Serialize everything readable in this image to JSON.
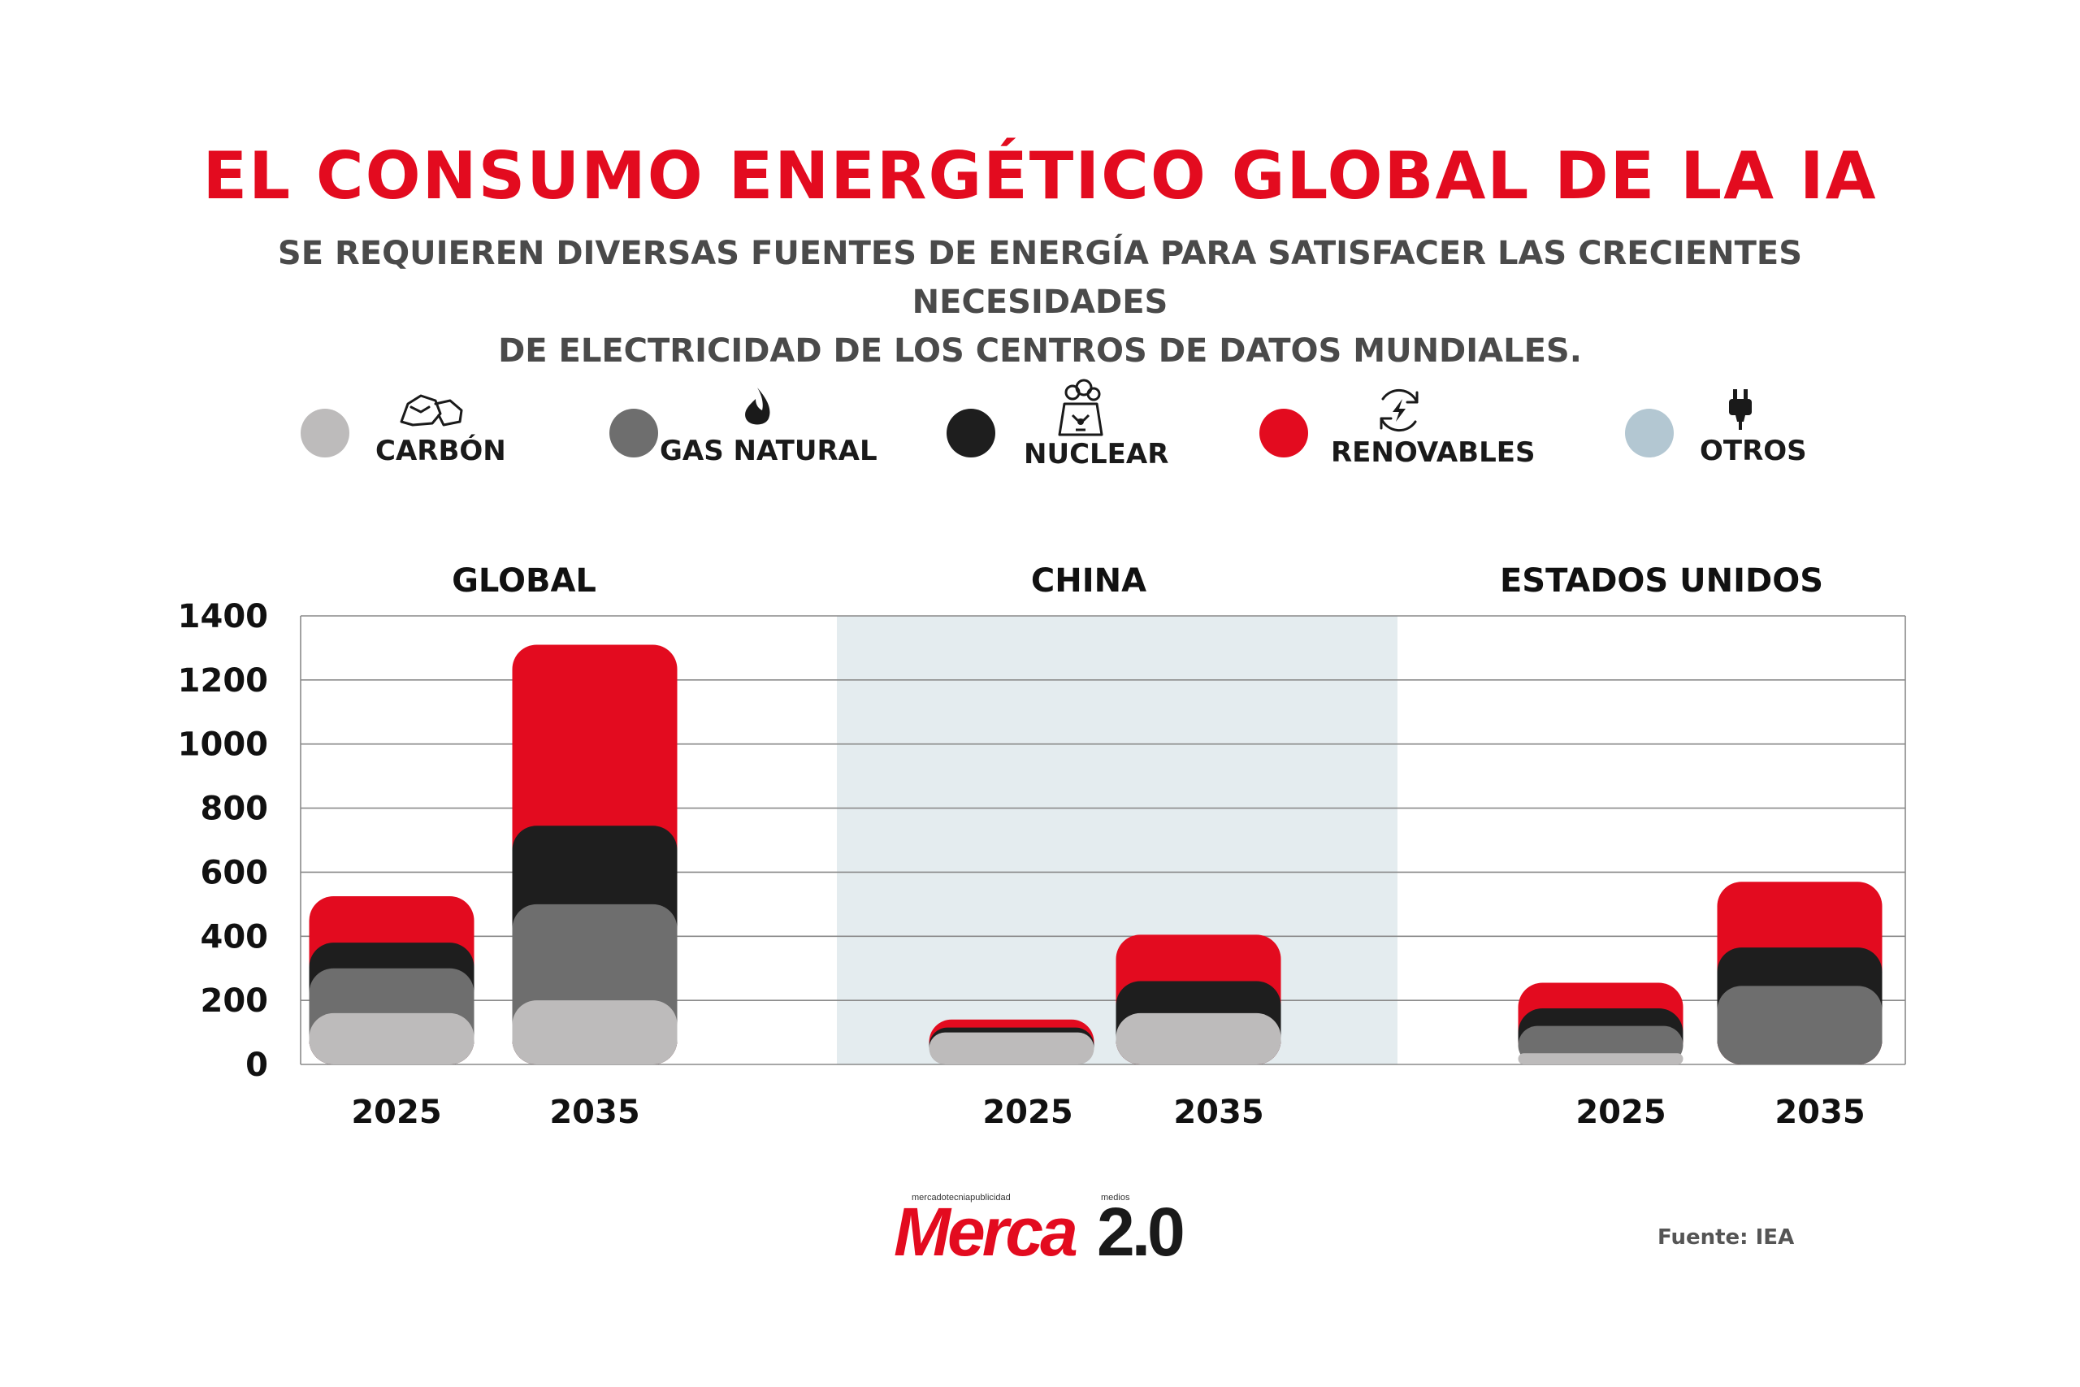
{
  "title": "EL  CONSUMO ENERGÉTICO GLOBAL DE LA IA",
  "subtitle_line1": "SE REQUIEREN DIVERSAS FUENTES DE ENERGÍA PARA SATISFACER LAS CRECIENTES NECESIDADES",
  "subtitle_line2": "DE ELECTRICIDAD DE LOS CENTROS DE DATOS MUNDIALES.",
  "colors": {
    "carbon": "#bdbbbb",
    "gas": "#6e6e6e",
    "nuclear": "#1e1e1e",
    "renovables": "#e30b1f",
    "otros": "#b3c7d2",
    "china_bg": "#e4ecef",
    "title": "#e30b1f"
  },
  "legend": [
    {
      "key": "carbon",
      "label": "CARBÓN",
      "icon": "coal-icon"
    },
    {
      "key": "gas",
      "label": "GAS NATURAL",
      "icon": "flame-icon"
    },
    {
      "key": "nuclear",
      "label": "NUCLEAR",
      "icon": "nuclear-plant-icon"
    },
    {
      "key": "renovables",
      "label": "RENOVABLES",
      "icon": "renewable-energy-icon"
    },
    {
      "key": "otros",
      "label": "OTROS",
      "icon": "plug-icon"
    }
  ],
  "chart_data": {
    "type": "bar",
    "stacked": true,
    "ylim": [
      0,
      1400
    ],
    "yticks": [
      "0",
      "200",
      "400",
      "600",
      "800",
      "1000",
      "1200",
      "1400"
    ],
    "grid": true,
    "panels": [
      {
        "name": "GLOBAL",
        "shaded": false,
        "bars": [
          {
            "year": "2025",
            "values": {
              "carbon": 160,
              "gas": 140,
              "nuclear": 80,
              "renovables": 145,
              "otros": 0
            }
          },
          {
            "year": "2035",
            "values": {
              "carbon": 200,
              "gas": 300,
              "nuclear": 245,
              "renovables": 565,
              "otros": 0
            }
          }
        ]
      },
      {
        "name": "CHINA",
        "shaded": true,
        "bars": [
          {
            "year": "2025",
            "values": {
              "carbon": 100,
              "gas": 0,
              "nuclear": 15,
              "renovables": 25,
              "otros": 0
            }
          },
          {
            "year": "2035",
            "values": {
              "carbon": 160,
              "gas": 0,
              "nuclear": 100,
              "renovables": 145,
              "otros": 0
            }
          }
        ]
      },
      {
        "name": "ESTADOS UNIDOS",
        "shaded": false,
        "bars": [
          {
            "year": "2025",
            "values": {
              "carbon": 35,
              "gas": 85,
              "nuclear": 55,
              "renovables": 80,
              "otros": 0
            }
          },
          {
            "year": "2035",
            "values": {
              "carbon": 0,
              "gas": 245,
              "nuclear": 120,
              "renovables": 205,
              "otros": 0
            }
          }
        ]
      }
    ]
  },
  "logo": {
    "tagline_left": "mercadotecniapublicidad",
    "tagline_right": "medios",
    "word": "Merca",
    "version": "2.0"
  },
  "source": "Fuente: IEA"
}
